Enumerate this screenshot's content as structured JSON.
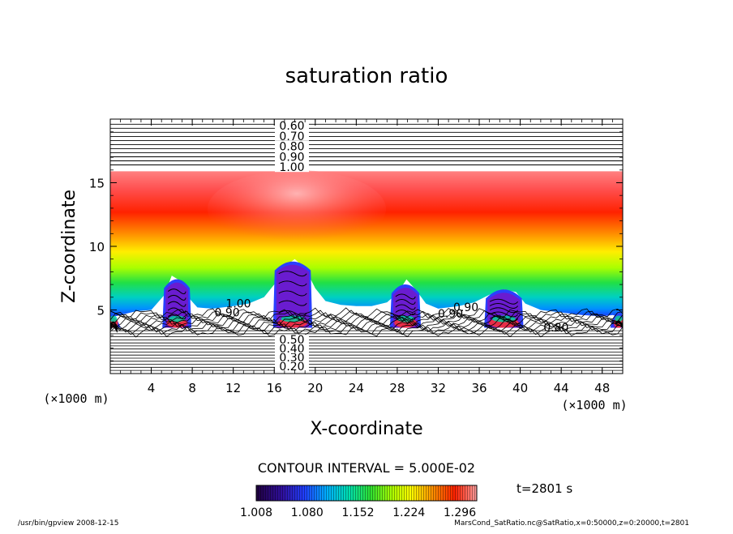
{
  "chart_data": {
    "type": "heatmap",
    "title": "saturation ratio",
    "xlabel": "X-coordinate",
    "ylabel": "Z-coordinate",
    "x_unit_left": "(×1000 m)",
    "x_unit_right": "(×1000 m)",
    "xlim": [
      0,
      50
    ],
    "ylim": [
      0,
      20
    ],
    "x_ticks": [
      "4",
      "8",
      "12",
      "16",
      "20",
      "24",
      "28",
      "32",
      "36",
      "40",
      "44",
      "48"
    ],
    "y_ticks": [
      "5",
      "10",
      "15"
    ],
    "contour_labels_upper": [
      "0.60",
      "0.70",
      "0.80",
      "0.90",
      "1.00"
    ],
    "contour_labels_lower": [
      "0.20",
      "0.30",
      "0.40",
      "0.50"
    ],
    "contour_labels_inline": [
      {
        "text": "1.00",
        "x": 12.5,
        "z": 5.2
      },
      {
        "text": "0.90",
        "x": 11.4,
        "z": 4.5
      },
      {
        "text": "0.90",
        "x": 33.2,
        "z": 4.4
      },
      {
        "text": "0.90",
        "x": 34.7,
        "z": 4.9
      },
      {
        "text": "0.80",
        "x": 43.5,
        "z": 3.3
      }
    ],
    "contour_interval": "CONTOUR INTERVAL = 5.000E-02",
    "colorbar": {
      "ticks": [
        "1.008",
        "1.080",
        "1.152",
        "1.224",
        "1.296"
      ],
      "min": 1.008,
      "max": 1.32,
      "colors": [
        "#1a0040",
        "#3a0aa0",
        "#2030ff",
        "#00aaff",
        "#00e0c0",
        "#20e040",
        "#a0ff00",
        "#ffff00",
        "#ff9000",
        "#ff2000",
        "#ff6060",
        "#ffb0b0"
      ]
    },
    "time_label": "t=2801 s",
    "grid": false
  },
  "footer": {
    "left": "/usr/bin/gpview   2008-12-15",
    "right": "MarsCond_SatRatio.nc@SatRatio,x=0:50000,z=0:20000,t=2801"
  }
}
